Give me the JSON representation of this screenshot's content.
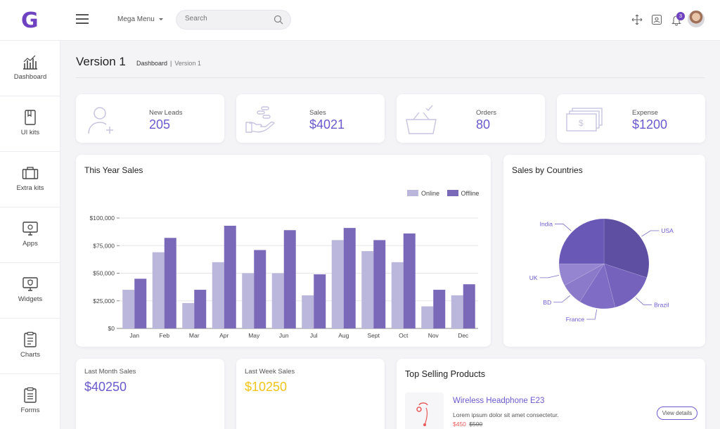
{
  "brand": {
    "logo_letter": "G",
    "accent": "#6f42c1"
  },
  "header": {
    "mega_menu_label": "Mega Menu",
    "search_placeholder": "Search",
    "notification_count": "3"
  },
  "sidebar": {
    "items": [
      {
        "label": "Dashboard",
        "icon": "bar-chart-icon"
      },
      {
        "label": "UI kits",
        "icon": "book-icon"
      },
      {
        "label": "Extra kits",
        "icon": "briefcase-icon"
      },
      {
        "label": "Apps",
        "icon": "monitor-icon"
      },
      {
        "label": "Widgets",
        "icon": "monitor-shield-icon"
      },
      {
        "label": "Charts",
        "icon": "clipboard-icon"
      },
      {
        "label": "Forms",
        "icon": "clipboard-list-icon"
      }
    ]
  },
  "page": {
    "title": "Version 1",
    "breadcrumb": [
      "Dashboard",
      "Version 1"
    ]
  },
  "stats": [
    {
      "label": "New Leads",
      "value": "205",
      "icon": "user-add-icon"
    },
    {
      "label": "Sales",
      "value": "$4021",
      "icon": "hand-coins-icon"
    },
    {
      "label": "Orders",
      "value": "80",
      "icon": "basket-icon"
    },
    {
      "label": "Expense",
      "value": "$1200",
      "icon": "money-icon"
    }
  ],
  "chart_data": [
    {
      "type": "bar",
      "title": "This Year Sales",
      "categories": [
        "Jan",
        "Feb",
        "Mar",
        "Apr",
        "May",
        "Jun",
        "Jul",
        "Aug",
        "Sept",
        "Oct",
        "Nov",
        "Dec"
      ],
      "series": [
        {
          "name": "Online",
          "color": "#bbb7dc",
          "values": [
            35000,
            69000,
            23000,
            60000,
            50000,
            50000,
            30000,
            80000,
            70000,
            60000,
            20000,
            30000
          ]
        },
        {
          "name": "Offline",
          "color": "#7a68b9",
          "values": [
            45000,
            82000,
            35000,
            93000,
            71000,
            89000,
            49000,
            91000,
            80000,
            86000,
            35000,
            40000
          ]
        }
      ],
      "yticks": [
        "$0",
        "$25,000",
        "$50,000",
        "$75,000",
        "$100,000"
      ],
      "ylim": [
        0,
        100000
      ],
      "legend": "top-right",
      "grid": true
    },
    {
      "type": "pie",
      "title": "Sales by Countries",
      "slices": [
        {
          "label": "USA",
          "value": 30,
          "color": "#5f4fa3"
        },
        {
          "label": "Brazil",
          "value": 16,
          "color": "#7462bd"
        },
        {
          "label": "France",
          "value": 13,
          "color": "#7f6cc4"
        },
        {
          "label": "BD",
          "value": 8,
          "color": "#8b7ac9"
        },
        {
          "label": "UK",
          "value": 8,
          "color": "#9585d0"
        },
        {
          "label": "India",
          "value": 25,
          "color": "#6a58b6"
        }
      ]
    }
  ],
  "summary": [
    {
      "label": "Last Month Sales",
      "value": "$40250",
      "color": "#6a5acd"
    },
    {
      "label": "Last Week Sales",
      "value": "$10250",
      "color": "#f0c419"
    }
  ],
  "top_products": {
    "title": "Top Selling Products",
    "items": [
      {
        "name": "Wireless Headphone E23",
        "description": "Lorem ipsum dolor sit amet consectetur.",
        "price": "$450",
        "old_price": "$500",
        "button": "View details",
        "icon": "headphone-icon"
      }
    ]
  }
}
